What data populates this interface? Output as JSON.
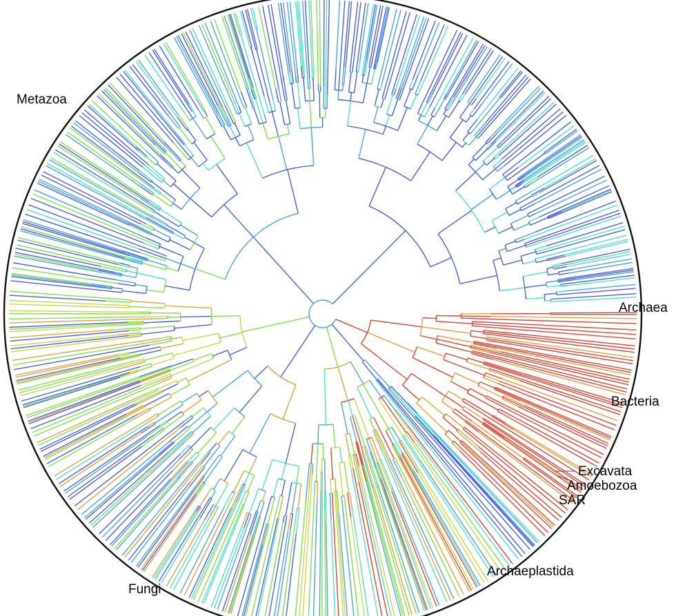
{
  "figure": {
    "clades": [
      {
        "id": "metazoa",
        "label": "Metazoa"
      },
      {
        "id": "archaea",
        "label": "Archaea"
      },
      {
        "id": "bacteria",
        "label": "Bacteria"
      },
      {
        "id": "excavata",
        "label": "Excavata"
      },
      {
        "id": "amoebozoa",
        "label": "Amoebozoa"
      },
      {
        "id": "sar",
        "label": "SAR"
      },
      {
        "id": "archaeplastida",
        "label": "Archaeplastida"
      },
      {
        "id": "fungi",
        "label": "Fungi"
      }
    ],
    "colors": {
      "blue": "#4a5fe0",
      "sky": "#4aa3e0",
      "cyan": "#4fe0c8",
      "green": "#7ee04a",
      "yellow": "#c8d84a",
      "orange": "#e0a040",
      "red": "#d94436",
      "ring": "#111111"
    }
  }
}
